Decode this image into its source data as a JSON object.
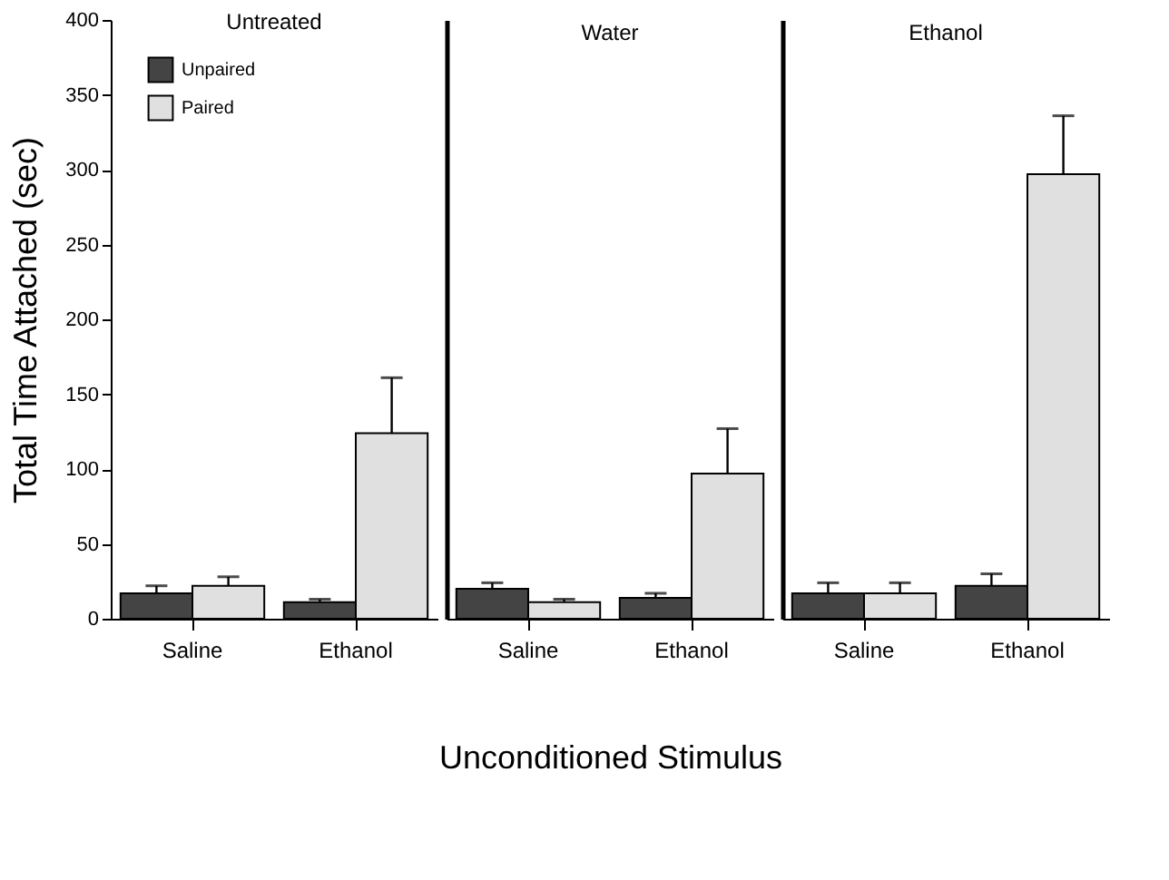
{
  "chart_data": [
    {
      "type": "bar",
      "title": "Untreated",
      "ylabel": "Total Time Attached (sec)",
      "categories": [
        "Saline",
        "Ethanol"
      ],
      "ylim": [
        0,
        400
      ],
      "yticks": [
        0,
        50,
        100,
        150,
        200,
        250,
        300,
        350,
        400
      ],
      "grid": false,
      "legend": "top left",
      "series": [
        {
          "name": "Unpaired",
          "color": "#444444",
          "values": [
            17,
            11
          ],
          "errors": [
            [
              17,
              22
            ],
            [
              11,
              13
            ]
          ]
        },
        {
          "name": "Paired",
          "color": "#e0e0e0",
          "values": [
            22,
            124
          ],
          "errors": [
            [
              22,
              28
            ],
            [
              124,
              161
            ]
          ]
        }
      ]
    },
    {
      "type": "bar",
      "title": "Water",
      "xlabel": "Unconditioned Stimulus",
      "categories": [
        "Saline",
        "Ethanol"
      ],
      "ylim": [
        0,
        400
      ],
      "yticks": [
        0,
        50,
        100,
        150,
        200,
        250,
        300,
        350,
        400
      ],
      "tick_labels": "x",
      "grid": false,
      "legend": false,
      "series": [
        {
          "color": "#444444",
          "values": [
            20,
            14
          ],
          "errors": [
            [
              20,
              24
            ],
            [
              14,
              17
            ]
          ]
        },
        {
          "color": "#e0e0e0",
          "values": [
            11,
            97
          ],
          "errors": [
            [
              11,
              13
            ],
            [
              97,
              127
            ]
          ]
        }
      ]
    },
    {
      "type": "bar",
      "title": "Ethanol",
      "categories": [
        "Saline",
        "Ethanol"
      ],
      "ylim": [
        0,
        400
      ],
      "yticks": [
        0,
        50,
        100,
        150,
        200,
        250,
        300,
        350,
        400
      ],
      "tick_labels": "x",
      "grid": false,
      "legend": false,
      "series": [
        {
          "color": "#444444",
          "values": [
            17,
            22
          ],
          "errors": [
            [
              17,
              24
            ],
            [
              22,
              30
            ]
          ]
        },
        {
          "color": "#e0e0e0",
          "values": [
            17,
            297
          ],
          "errors": [
            [
              17,
              24
            ],
            [
              297,
              336
            ]
          ]
        }
      ]
    }
  ]
}
